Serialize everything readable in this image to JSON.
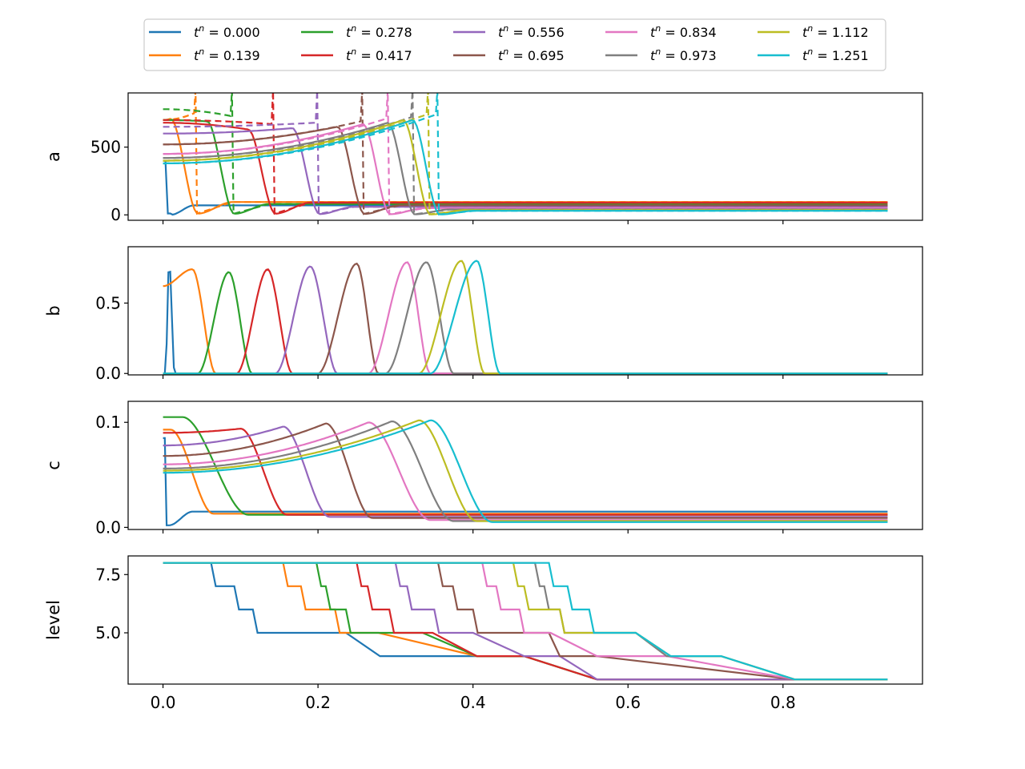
{
  "figure": {
    "type": "multi-panel line plot (a, b, c, level vs x)"
  },
  "legend": {
    "entries": [
      {
        "label": "t^n = 0.000",
        "sub": "n",
        "value": "0.000",
        "color": "#1f77b4"
      },
      {
        "label": "t^n = 0.139",
        "sub": "n",
        "value": "0.139",
        "color": "#ff7f0e"
      },
      {
        "label": "t^n = 0.278",
        "sub": "n",
        "value": "0.278",
        "color": "#2ca02c"
      },
      {
        "label": "t^n = 0.417",
        "sub": "n",
        "value": "0.417",
        "color": "#d62728"
      },
      {
        "label": "t^n = 0.556",
        "sub": "n",
        "value": "0.556",
        "color": "#9467bd"
      },
      {
        "label": "t^n = 0.695",
        "sub": "n",
        "value": "0.695",
        "color": "#8c564b"
      },
      {
        "label": "t^n = 0.834",
        "sub": "n",
        "value": "0.834",
        "color": "#e377c2"
      },
      {
        "label": "t^n = 0.973",
        "sub": "n",
        "value": "0.973",
        "color": "#7f7f7f"
      },
      {
        "label": "t^n = 1.112",
        "sub": "n",
        "value": "1.112",
        "color": "#bcbd22"
      },
      {
        "label": "t^n = 1.251",
        "sub": "n",
        "value": "1.251",
        "color": "#17becf"
      }
    ],
    "columns": 5,
    "placement": "top-center"
  },
  "chart_data": [
    {
      "type": "line",
      "ylabel": "a",
      "xlabel": "",
      "xlim": [
        -0.045,
        0.98
      ],
      "ylim": [
        -40,
        900
      ],
      "yticks": [
        "0",
        "500"
      ],
      "ytick_values": [
        0,
        500
      ],
      "xticks_shown": false,
      "series_names": [
        "t^n = 0.000",
        "t^n = 0.139",
        "t^n = 0.278",
        "t^n = 0.417",
        "t^n = 0.556",
        "t^n = 0.695",
        "t^n = 0.834",
        "t^n = 0.973",
        "t^n = 1.112",
        "t^n = 1.251"
      ],
      "front_positions": [
        0.004,
        0.04,
        0.087,
        0.14,
        0.197,
        0.255,
        0.288,
        0.32,
        0.34,
        0.352
      ],
      "peak_values": [
        400,
        710,
        690,
        630,
        640,
        650,
        670,
        680,
        700,
        700
      ],
      "behind_start_values": [
        400,
        700,
        700,
        680,
        600,
        520,
        450,
        420,
        400,
        380
      ],
      "tail_values": [
        70,
        95,
        80,
        90,
        60,
        70,
        50,
        40,
        35,
        30
      ],
      "dashed_series": true,
      "dashed_start_values": [
        400,
        700,
        780,
        700,
        650,
        520,
        450,
        420,
        400,
        380
      ],
      "dashed_spike_to": 900
    },
    {
      "type": "line",
      "ylabel": "b",
      "xlabel": "",
      "xlim": [
        -0.045,
        0.98
      ],
      "ylim": [
        -0.01,
        0.9
      ],
      "yticks": [
        "0.0",
        "0.5"
      ],
      "ytick_values": [
        0.0,
        0.5
      ],
      "xticks_shown": false,
      "pulse_left": [
        0.003,
        0.0,
        0.045,
        0.095,
        0.145,
        0.2,
        0.265,
        0.287,
        0.33,
        0.345
      ],
      "pulse_right": [
        0.015,
        0.068,
        0.115,
        0.167,
        0.225,
        0.278,
        0.345,
        0.375,
        0.415,
        0.435
      ],
      "pulse_peak": [
        0.8,
        0.74,
        0.72,
        0.74,
        0.76,
        0.78,
        0.79,
        0.79,
        0.8,
        0.8
      ],
      "pulse_peak_x": [
        0.008,
        0.038,
        0.085,
        0.135,
        0.19,
        0.25,
        0.315,
        0.34,
        0.385,
        0.405
      ]
    },
    {
      "type": "line",
      "ylabel": "c",
      "xlabel": "",
      "xlim": [
        -0.045,
        0.98
      ],
      "ylim": [
        -0.002,
        0.12
      ],
      "yticks": [
        "0.0",
        "0.1"
      ],
      "ytick_values": [
        0.0,
        0.1
      ],
      "xticks_shown": false,
      "start_values": [
        0.085,
        0.093,
        0.105,
        0.09,
        0.078,
        0.068,
        0.06,
        0.056,
        0.054,
        0.052
      ],
      "peak_values": [
        0.085,
        0.093,
        0.105,
        0.094,
        0.096,
        0.099,
        0.1,
        0.101,
        0.102,
        0.102
      ],
      "peak_x": [
        0.002,
        0.01,
        0.025,
        0.1,
        0.155,
        0.21,
        0.265,
        0.295,
        0.33,
        0.345
      ],
      "front_end_x": [
        0.006,
        0.065,
        0.11,
        0.16,
        0.215,
        0.27,
        0.345,
        0.375,
        0.405,
        0.425
      ],
      "tail_values": [
        0.015,
        0.013,
        0.012,
        0.012,
        0.01,
        0.009,
        0.007,
        0.006,
        0.006,
        0.005
      ]
    },
    {
      "type": "line",
      "ylabel": "level",
      "xlabel": "",
      "xlim": [
        -0.045,
        0.98
      ],
      "ylim": [
        2.8,
        8.3
      ],
      "yticks": [
        "5.0",
        "7.5"
      ],
      "ytick_values": [
        5.0,
        7.5
      ],
      "xticks": [
        "0.0",
        "0.2",
        "0.4",
        "0.6",
        "0.8"
      ],
      "xtick_values": [
        0.0,
        0.2,
        0.4,
        0.6,
        0.8
      ],
      "xticks_shown": true,
      "series": [
        {
          "name": "t^n = 0.000",
          "x": [
            0.0,
            0.062,
            0.068,
            0.092,
            0.098,
            0.116,
            0.122,
            0.14,
            0.236,
            0.28,
            0.405,
            0.466,
            0.56,
            0.815,
            0.935
          ],
          "y": [
            8,
            8,
            7,
            7,
            6,
            6,
            5,
            5,
            5,
            4,
            4,
            4,
            3,
            3,
            3
          ]
        },
        {
          "name": "t^n = 0.139",
          "x": [
            0.0,
            0.155,
            0.161,
            0.178,
            0.184,
            0.222,
            0.228,
            0.262,
            0.278,
            0.405,
            0.466,
            0.56,
            0.815,
            0.935
          ],
          "y": [
            8,
            8,
            7,
            7,
            6,
            6,
            5,
            5,
            5,
            4,
            4,
            3,
            3,
            3
          ]
        },
        {
          "name": "t^n = 0.278",
          "x": [
            0.0,
            0.198,
            0.204,
            0.21,
            0.216,
            0.236,
            0.242,
            0.262,
            0.335,
            0.405,
            0.466,
            0.56,
            0.815,
            0.935
          ],
          "y": [
            8,
            8,
            7,
            7,
            6,
            6,
            5,
            5,
            5,
            4,
            4,
            3,
            3,
            3
          ]
        },
        {
          "name": "t^n = 0.417",
          "x": [
            0.0,
            0.25,
            0.256,
            0.264,
            0.27,
            0.292,
            0.298,
            0.323,
            0.348,
            0.405,
            0.466,
            0.56,
            0.815,
            0.935
          ],
          "y": [
            8,
            8,
            7,
            7,
            6,
            6,
            5,
            5,
            5,
            4,
            4,
            3,
            3,
            3
          ]
        },
        {
          "name": "t^n = 0.556",
          "x": [
            0.0,
            0.3,
            0.306,
            0.315,
            0.321,
            0.35,
            0.356,
            0.4,
            0.466,
            0.512,
            0.56,
            0.815,
            0.935
          ],
          "y": [
            8,
            8,
            7,
            7,
            6,
            6,
            5,
            5,
            4,
            4,
            3,
            3,
            3
          ]
        },
        {
          "name": "t^n = 0.695",
          "x": [
            0.0,
            0.355,
            0.361,
            0.374,
            0.38,
            0.4,
            0.406,
            0.436,
            0.498,
            0.512,
            0.56,
            0.815,
            0.935
          ],
          "y": [
            8,
            8,
            7,
            7,
            6,
            6,
            5,
            5,
            5,
            4,
            4,
            3,
            3
          ]
        },
        {
          "name": "t^n = 0.834",
          "x": [
            0.0,
            0.412,
            0.418,
            0.43,
            0.436,
            0.46,
            0.466,
            0.5,
            0.56,
            0.65,
            0.815,
            0.935
          ],
          "y": [
            8,
            8,
            7,
            7,
            6,
            6,
            5,
            5,
            4,
            4,
            3,
            3
          ]
        },
        {
          "name": "t^n = 0.973",
          "x": [
            0.0,
            0.48,
            0.486,
            0.492,
            0.498,
            0.512,
            0.518,
            0.56,
            0.61,
            0.65,
            0.72,
            0.815,
            0.935
          ],
          "y": [
            8,
            8,
            7,
            7,
            6,
            6,
            5,
            5,
            5,
            4,
            4,
            3,
            3
          ]
        },
        {
          "name": "t^n = 1.112",
          "x": [
            0.0,
            0.452,
            0.458,
            0.466,
            0.472,
            0.512,
            0.518,
            0.575,
            0.61,
            0.655,
            0.72,
            0.815,
            0.935
          ],
          "y": [
            8,
            8,
            7,
            7,
            6,
            6,
            5,
            5,
            5,
            4,
            4,
            3,
            3
          ]
        },
        {
          "name": "t^n = 1.251",
          "x": [
            0.0,
            0.498,
            0.504,
            0.522,
            0.528,
            0.55,
            0.556,
            0.578,
            0.61,
            0.655,
            0.72,
            0.815,
            0.935
          ],
          "y": [
            8,
            8,
            7,
            7,
            6,
            6,
            5,
            5,
            5,
            4,
            4,
            3,
            3
          ]
        }
      ]
    }
  ],
  "colors": [
    "#1f77b4",
    "#ff7f0e",
    "#2ca02c",
    "#d62728",
    "#9467bd",
    "#8c564b",
    "#e377c2",
    "#7f7f7f",
    "#bcbd22",
    "#17becf"
  ]
}
